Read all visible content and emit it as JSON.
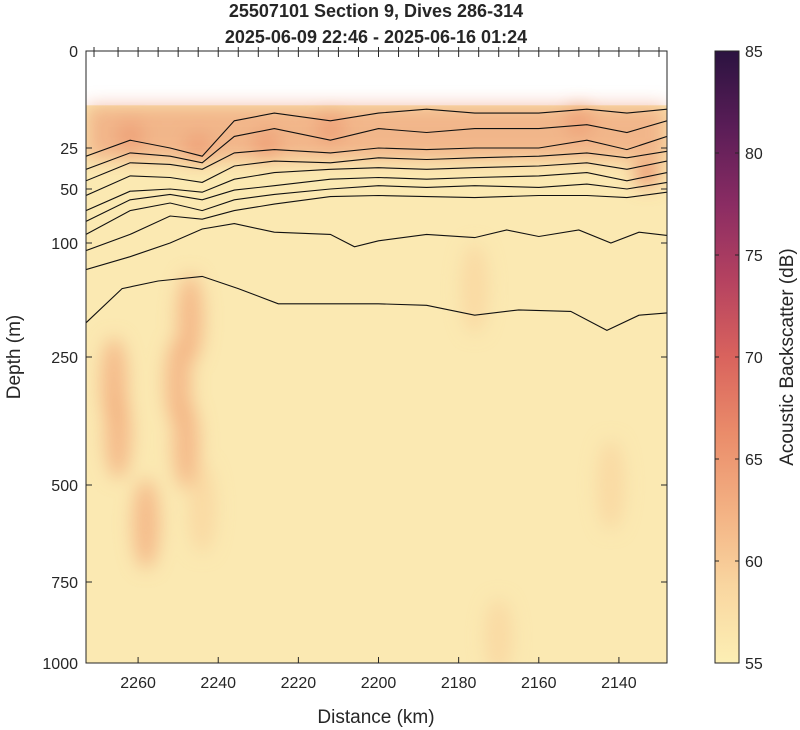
{
  "chart_data": {
    "type": "heatmap",
    "title": "25507101 Section 9, Dives 286-314",
    "subtitle": "2025-06-09 22:46 - 2025-06-16 01:24",
    "xlabel": "Distance (km)",
    "ylabel": "Depth (m)",
    "colorbar_label": "Acoustic Backscatter (dB)",
    "x_axis": {
      "reversed": true,
      "range": [
        2273,
        2128
      ],
      "ticks": [
        2260,
        2240,
        2220,
        2200,
        2180,
        2160,
        2140
      ]
    },
    "y_axis": {
      "reversed": true,
      "scale": "nonlinear",
      "ticks": [
        0,
        25,
        50,
        100,
        250,
        500,
        750,
        1000
      ],
      "tick_labels": [
        "0",
        "25",
        "50",
        "100",
        "250",
        "500",
        "750",
        "1000"
      ]
    },
    "colorbar": {
      "range": [
        55,
        85
      ],
      "ticks": [
        55,
        60,
        65,
        70,
        75,
        80,
        85
      ],
      "tick_labels": [
        "55",
        "60",
        "65",
        "70",
        "75",
        "80",
        "85"
      ]
    },
    "colormap": [
      "#fcefb4",
      "#f9d6a0",
      "#f3b183",
      "#ea8c6a",
      "#d9635d",
      "#b54260",
      "#8a2c63",
      "#5a1d57",
      "#2b1340"
    ],
    "background": "#fbe9b2",
    "data_depth_top_m": 14,
    "dive_ticks_km": [
      2271,
      2265,
      2260,
      2255,
      2250,
      2245,
      2240,
      2235,
      2230,
      2225,
      2220,
      2215,
      2210,
      2205,
      2200,
      2195,
      2190,
      2185,
      2180,
      2175,
      2170,
      2165,
      2160,
      2155,
      2150,
      2145,
      2140,
      2135,
      2130
    ],
    "high_backscatter_patches": [
      {
        "x": 2262,
        "depth": 22,
        "value": 64
      },
      {
        "x": 2245,
        "depth": 25,
        "value": 62
      },
      {
        "x": 2228,
        "depth": 24,
        "value": 63
      },
      {
        "x": 2212,
        "depth": 20,
        "value": 62
      },
      {
        "x": 2150,
        "depth": 18,
        "value": 63
      },
      {
        "x": 2133,
        "depth": 40,
        "value": 65
      },
      {
        "x": 2266,
        "depth": 300,
        "value": 62
      },
      {
        "x": 2265,
        "depth": 400,
        "value": 63
      },
      {
        "x": 2258,
        "depth": 600,
        "value": 62
      },
      {
        "x": 2250,
        "depth": 300,
        "value": 63
      },
      {
        "x": 2248,
        "depth": 420,
        "value": 62
      },
      {
        "x": 2247,
        "depth": 200,
        "value": 61
      },
      {
        "x": 2244,
        "depth": 560,
        "value": 60
      },
      {
        "x": 2176,
        "depth": 160,
        "value": 59
      },
      {
        "x": 2170,
        "depth": 920,
        "value": 60
      },
      {
        "x": 2142,
        "depth": 500,
        "value": 58
      }
    ],
    "contours": [
      {
        "points": [
          [
            2273,
            30
          ],
          [
            2262,
            23
          ],
          [
            2252,
            25
          ],
          [
            2244,
            30
          ],
          [
            2236,
            18
          ],
          [
            2226,
            16
          ],
          [
            2212,
            18
          ],
          [
            2200,
            16
          ],
          [
            2188,
            15
          ],
          [
            2176,
            16
          ],
          [
            2160,
            16
          ],
          [
            2148,
            15
          ],
          [
            2138,
            16
          ],
          [
            2128,
            15
          ]
        ]
      },
      {
        "points": [
          [
            2273,
            38
          ],
          [
            2262,
            28
          ],
          [
            2252,
            30
          ],
          [
            2244,
            34
          ],
          [
            2236,
            22
          ],
          [
            2226,
            20
          ],
          [
            2212,
            23
          ],
          [
            2200,
            20
          ],
          [
            2188,
            21
          ],
          [
            2176,
            20
          ],
          [
            2160,
            20
          ],
          [
            2148,
            19
          ],
          [
            2138,
            21
          ],
          [
            2128,
            18
          ]
        ]
      },
      {
        "points": [
          [
            2273,
            45
          ],
          [
            2262,
            34
          ],
          [
            2252,
            35
          ],
          [
            2244,
            38
          ],
          [
            2236,
            28
          ],
          [
            2226,
            26
          ],
          [
            2212,
            28
          ],
          [
            2200,
            25
          ],
          [
            2188,
            26
          ],
          [
            2176,
            25
          ],
          [
            2160,
            25
          ],
          [
            2148,
            23
          ],
          [
            2138,
            26
          ],
          [
            2128,
            22
          ]
        ]
      },
      {
        "points": [
          [
            2273,
            56
          ],
          [
            2262,
            42
          ],
          [
            2252,
            43
          ],
          [
            2244,
            46
          ],
          [
            2236,
            36
          ],
          [
            2226,
            33
          ],
          [
            2212,
            34
          ],
          [
            2200,
            31
          ],
          [
            2188,
            32
          ],
          [
            2176,
            31
          ],
          [
            2160,
            30
          ],
          [
            2148,
            28
          ],
          [
            2138,
            31
          ],
          [
            2128,
            27
          ]
        ]
      },
      {
        "points": [
          [
            2273,
            70
          ],
          [
            2262,
            52
          ],
          [
            2252,
            50
          ],
          [
            2244,
            53
          ],
          [
            2236,
            44
          ],
          [
            2226,
            40
          ],
          [
            2212,
            38
          ],
          [
            2200,
            37
          ],
          [
            2188,
            38
          ],
          [
            2176,
            37
          ],
          [
            2160,
            36
          ],
          [
            2148,
            34
          ],
          [
            2138,
            38
          ],
          [
            2128,
            33
          ]
        ]
      },
      {
        "points": [
          [
            2273,
            80
          ],
          [
            2262,
            60
          ],
          [
            2252,
            55
          ],
          [
            2244,
            60
          ],
          [
            2236,
            51
          ],
          [
            2226,
            48
          ],
          [
            2212,
            44
          ],
          [
            2200,
            43
          ],
          [
            2188,
            44
          ],
          [
            2176,
            43
          ],
          [
            2160,
            42
          ],
          [
            2148,
            40
          ],
          [
            2138,
            45
          ],
          [
            2128,
            40
          ]
        ]
      },
      {
        "points": [
          [
            2273,
            92
          ],
          [
            2262,
            70
          ],
          [
            2252,
            63
          ],
          [
            2244,
            70
          ],
          [
            2236,
            60
          ],
          [
            2226,
            55
          ],
          [
            2212,
            50
          ],
          [
            2200,
            48
          ],
          [
            2188,
            49
          ],
          [
            2176,
            48
          ],
          [
            2160,
            49
          ],
          [
            2148,
            47
          ],
          [
            2138,
            50
          ],
          [
            2128,
            46
          ]
        ]
      },
      {
        "points": [
          [
            2273,
            110
          ],
          [
            2262,
            92
          ],
          [
            2252,
            75
          ],
          [
            2244,
            78
          ],
          [
            2236,
            70
          ],
          [
            2226,
            64
          ],
          [
            2212,
            57
          ],
          [
            2200,
            56
          ],
          [
            2188,
            57
          ],
          [
            2176,
            58
          ],
          [
            2160,
            56
          ],
          [
            2148,
            56
          ],
          [
            2138,
            58
          ],
          [
            2128,
            53
          ]
        ]
      },
      {
        "points": [
          [
            2273,
            135
          ],
          [
            2262,
            118
          ],
          [
            2252,
            100
          ],
          [
            2244,
            87
          ],
          [
            2236,
            82
          ],
          [
            2226,
            90
          ],
          [
            2212,
            92
          ],
          [
            2206,
            105
          ],
          [
            2200,
            98
          ],
          [
            2188,
            92
          ],
          [
            2176,
            95
          ],
          [
            2168,
            88
          ],
          [
            2160,
            94
          ],
          [
            2150,
            88
          ],
          [
            2142,
            100
          ],
          [
            2135,
            90
          ],
          [
            2128,
            93
          ]
        ]
      },
      {
        "points": [
          [
            2273,
            205
          ],
          [
            2264,
            160
          ],
          [
            2255,
            150
          ],
          [
            2244,
            144
          ],
          [
            2235,
            160
          ],
          [
            2225,
            180
          ],
          [
            2212,
            180
          ],
          [
            2200,
            180
          ],
          [
            2188,
            182
          ],
          [
            2176,
            195
          ],
          [
            2165,
            188
          ],
          [
            2152,
            190
          ],
          [
            2143,
            215
          ],
          [
            2135,
            195
          ],
          [
            2128,
            192
          ]
        ]
      }
    ]
  }
}
